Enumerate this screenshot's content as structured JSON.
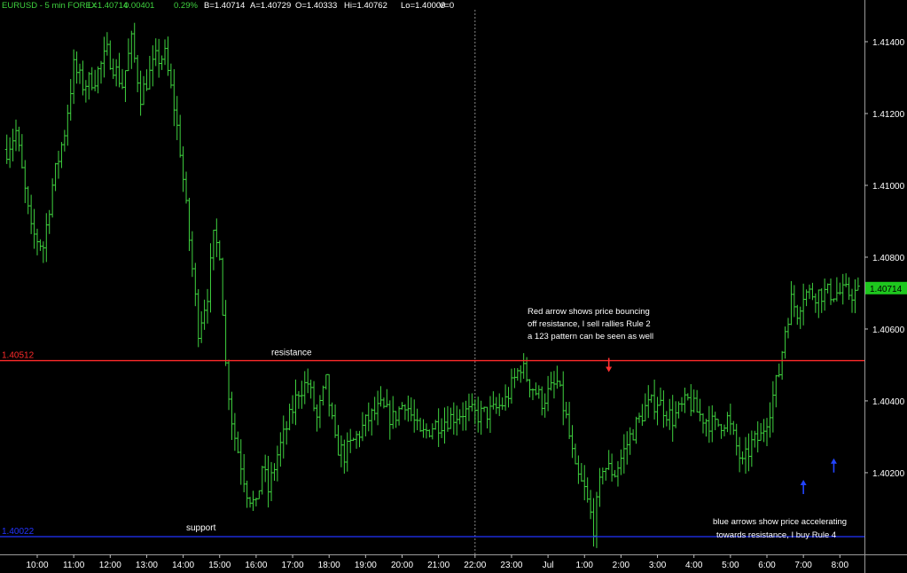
{
  "header": {
    "symbol": "EURUSD - 5 min  FOREX",
    "last": "L=1.40714",
    "change": "0.00401",
    "change_pct": "0.29%",
    "bid": "B=1.40714",
    "ask": "A=1.40729",
    "open": "O=1.40333",
    "high": "Hi=1.40762",
    "low": "Lo=1.40009",
    "volume": "V=0"
  },
  "colors": {
    "background": "#000000",
    "bars": "#3fd23f",
    "resistance_line": "#ff2a2a",
    "support_line": "#2233ff",
    "red_arrow": "#ff3030",
    "blue_arrow": "#2244ff",
    "axis_text": "#ffffff",
    "last_price_badge": "#1ec81e"
  },
  "chart_data": {
    "type": "ohlc",
    "xlabel": "",
    "ylabel": "",
    "ylim": [
      1.39995,
      1.4148
    ],
    "y_ticks": [
      "1.41400",
      "1.41200",
      "1.41000",
      "1.40800",
      "1.40600",
      "1.40400",
      "1.40200"
    ],
    "y_tick_values": [
      1.414,
      1.412,
      1.41,
      1.408,
      1.406,
      1.404,
      1.402
    ],
    "x_ticks": [
      "10:00",
      "11:00",
      "12:00",
      "13:00",
      "14:00",
      "15:00",
      "16:00",
      "17:00",
      "18:00",
      "19:00",
      "20:00",
      "21:00",
      "22:00",
      "23:00",
      "Jul",
      "1:00",
      "2:00",
      "3:00",
      "4:00",
      "5:00",
      "6:00",
      "7:00",
      "8:00"
    ],
    "bars_per_hour": 12,
    "first_bar_offset": -10,
    "bar_count": 283,
    "grid": false,
    "day_separator_after": "22:00",
    "last_price": "1.40714",
    "last_price_value": 1.40714,
    "resistance": {
      "value": 1.40512,
      "label_value": "1.40512",
      "text": "resistance"
    },
    "support": {
      "value": 1.40022,
      "label_value": "1.40022",
      "text": "support"
    },
    "path_anchors": [
      [
        0,
        1.411
      ],
      [
        3,
        1.4115
      ],
      [
        8,
        1.4087
      ],
      [
        12,
        1.4083
      ],
      [
        15,
        1.41
      ],
      [
        19,
        1.4115
      ],
      [
        22,
        1.4133
      ],
      [
        25,
        1.4128
      ],
      [
        29,
        1.413
      ],
      [
        33,
        1.4137
      ],
      [
        38,
        1.4128
      ],
      [
        41,
        1.414
      ],
      [
        44,
        1.4125
      ],
      [
        49,
        1.4135
      ],
      [
        52,
        1.4136
      ],
      [
        55,
        1.4122
      ],
      [
        57,
        1.411
      ],
      [
        60,
        1.4085
      ],
      [
        63,
        1.406
      ],
      [
        66,
        1.407
      ],
      [
        68,
        1.4085
      ],
      [
        70,
        1.4082
      ],
      [
        72,
        1.405
      ],
      [
        74,
        1.4035
      ],
      [
        75,
        1.403
      ],
      [
        79,
        1.4015
      ],
      [
        82,
        1.401
      ],
      [
        84,
        1.4022
      ],
      [
        86,
        1.4015
      ],
      [
        89,
        1.4025
      ],
      [
        93,
        1.4035
      ],
      [
        96,
        1.4043
      ],
      [
        99,
        1.4045
      ],
      [
        102,
        1.4035
      ],
      [
        105,
        1.4045
      ],
      [
        108,
        1.4028
      ],
      [
        111,
        1.4025
      ],
      [
        115,
        1.403
      ],
      [
        119,
        1.4035
      ],
      [
        123,
        1.4038
      ],
      [
        127,
        1.4035
      ],
      [
        131,
        1.404
      ],
      [
        136,
        1.403
      ],
      [
        140,
        1.4033
      ],
      [
        145,
        1.4035
      ],
      [
        150,
        1.4037
      ],
      [
        155,
        1.4036
      ],
      [
        160,
        1.4037
      ],
      [
        164,
        1.404
      ],
      [
        169,
        1.405
      ],
      [
        172,
        1.4045
      ],
      [
        176,
        1.404
      ],
      [
        181,
        1.4045
      ],
      [
        184,
        1.4035
      ],
      [
        187,
        1.402
      ],
      [
        190,
        1.4015
      ],
      [
        193,
        1.4005
      ],
      [
        196,
        1.4022
      ],
      [
        200,
        1.402
      ],
      [
        205,
        1.403
      ],
      [
        210,
        1.4038
      ],
      [
        214,
        1.404
      ],
      [
        219,
        1.4035
      ],
      [
        224,
        1.404
      ],
      [
        228,
        1.4036
      ],
      [
        233,
        1.4033
      ],
      [
        237,
        1.4035
      ],
      [
        242,
        1.4022
      ],
      [
        245,
        1.4028
      ],
      [
        248,
        1.403
      ],
      [
        251,
        1.4038
      ],
      [
        254,
        1.4048
      ],
      [
        256,
        1.406
      ],
      [
        258,
        1.4068
      ],
      [
        260,
        1.4065
      ],
      [
        262,
        1.407
      ]
    ],
    "annotations": [
      {
        "id": "red-note",
        "lines": [
          "Red arrow shows price bouncing",
          "off resistance, I sell rallies   Rule 2",
          "  a 123 pattern can be seen as well"
        ]
      },
      {
        "id": "blue-note",
        "lines": [
          "blue arrows show price accelerating",
          "towards resistance, I buy Rule 4"
        ]
      }
    ],
    "arrows": [
      {
        "color": "red",
        "direction": "down",
        "at_time": "1:40",
        "price": 1.4048
      },
      {
        "color": "blue",
        "direction": "up",
        "at_time": "7:00",
        "price": 1.4018
      },
      {
        "color": "blue",
        "direction": "up",
        "at_time": "7:50",
        "price": 1.4024
      }
    ]
  }
}
